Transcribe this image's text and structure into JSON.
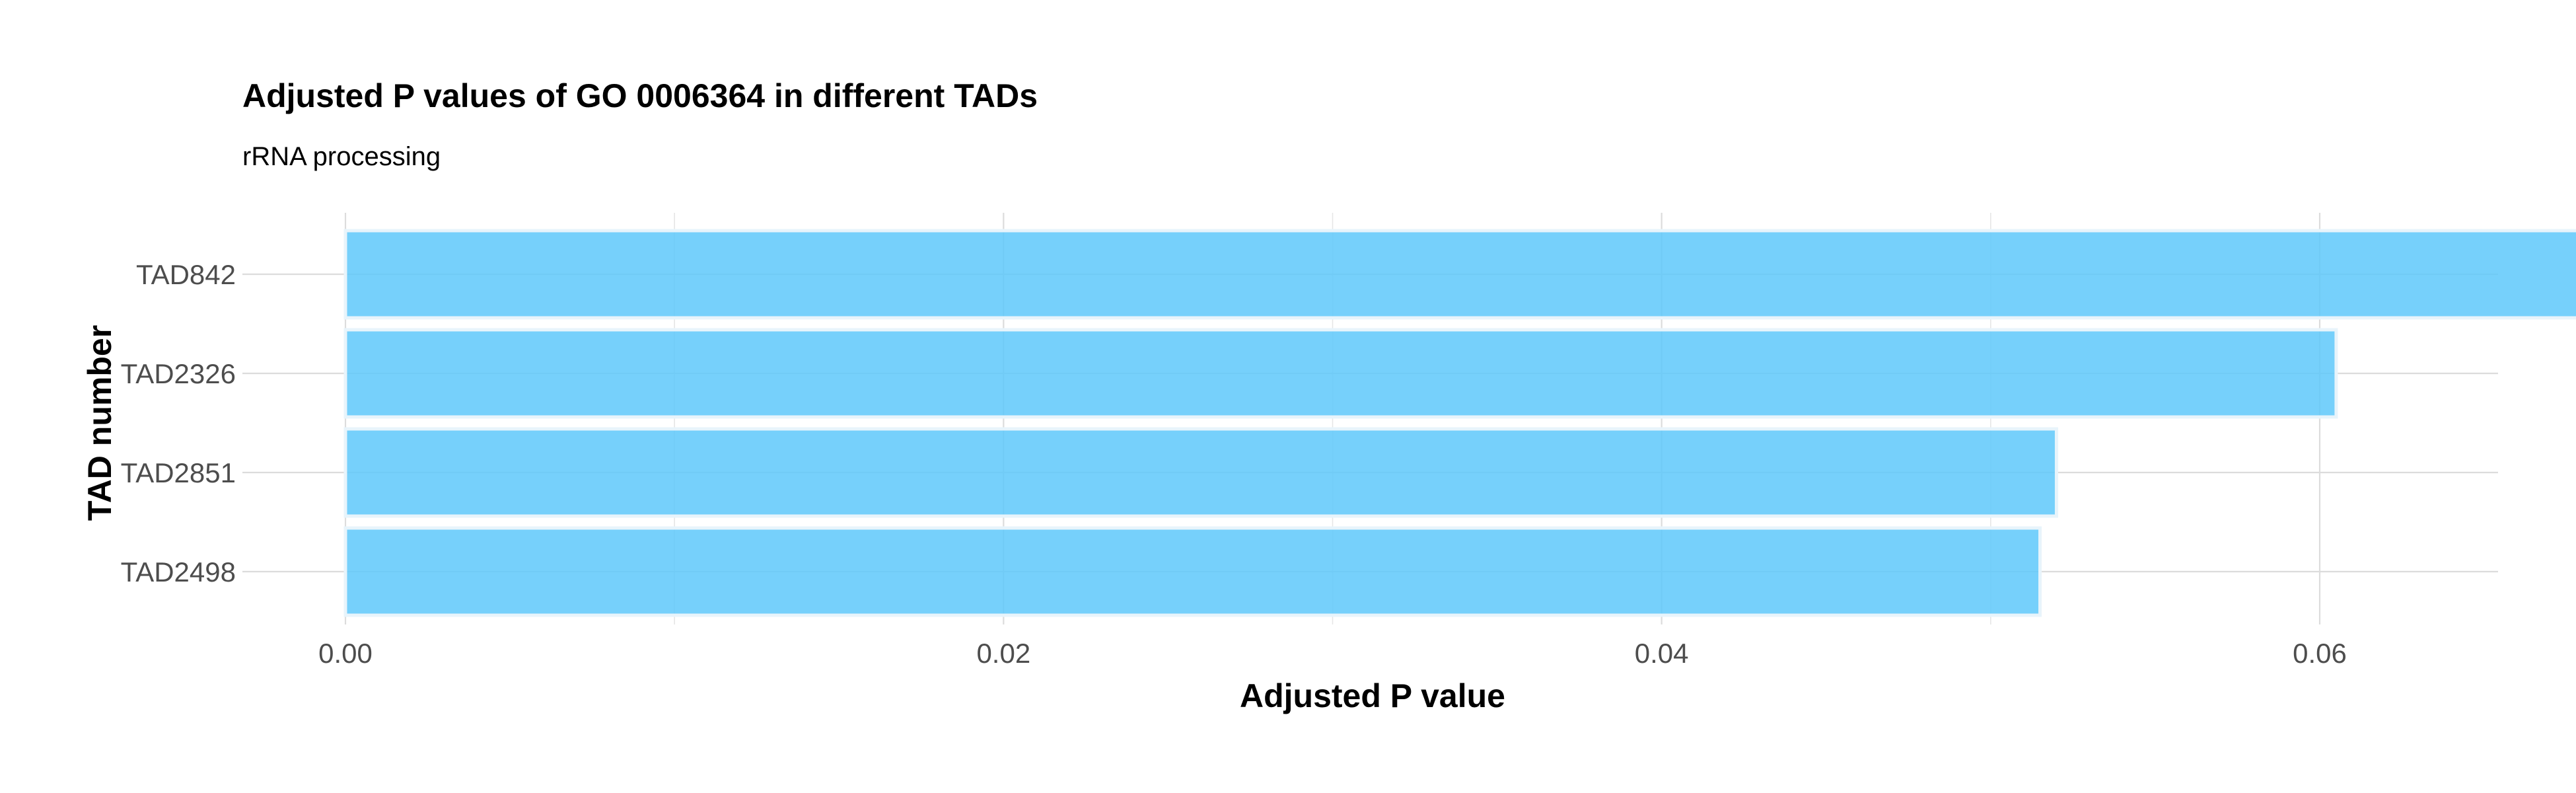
{
  "chart_data": {
    "type": "bar",
    "orientation": "horizontal",
    "title": "Adjusted P values of GO 0006364 in different TADs",
    "subtitle": "rRNA processing",
    "xlabel": "Adjusted P value",
    "ylabel": "TAD number",
    "categories": [
      "TAD842",
      "TAD2326",
      "TAD2851",
      "TAD2498"
    ],
    "values": [
      0.0691,
      0.0605,
      0.052,
      0.0515
    ],
    "xlim": [
      0,
      0.0725
    ],
    "xticks": [
      0.0,
      0.02,
      0.04,
      0.06
    ],
    "xtick_labels": [
      "0.00",
      "0.02",
      "0.04",
      "0.06"
    ],
    "minor_xticks": [
      0.01,
      0.03,
      0.05,
      0.07
    ],
    "bar_color": "#5ec8fa",
    "bar_outline_color": "#e8f4fb",
    "grid": true,
    "legend": "none"
  }
}
